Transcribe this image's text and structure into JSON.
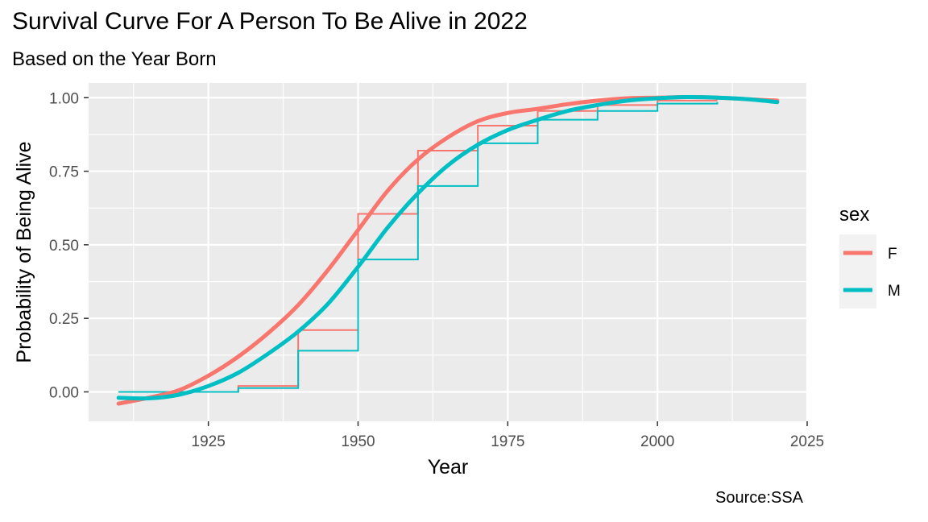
{
  "title": "Survival Curve For A Person To Be Alive in 2022",
  "subtitle": "Based on the Year Born",
  "caption": "Source:SSA",
  "colors": {
    "F": "#F8766D",
    "M": "#00BFC4",
    "panel": "#EBEBEB",
    "grid": "#FFFFFF"
  },
  "chart_data": {
    "type": "line",
    "xlabel": "Year",
    "ylabel": "Probability of Being Alive",
    "xlim": [
      1905,
      2025
    ],
    "ylim": [
      -0.1,
      1.05
    ],
    "x_ticks": [
      1925,
      1950,
      1975,
      2000,
      2025
    ],
    "x_tick_labels": [
      "1925",
      "1950",
      "1975",
      "2000",
      "2025"
    ],
    "y_ticks": [
      0,
      0.25,
      0.5,
      0.75,
      1
    ],
    "y_tick_labels": [
      "0.00",
      "0.25",
      "0.50",
      "0.75",
      "1.00"
    ],
    "grid": true,
    "legend": {
      "title": "sex",
      "position": "right",
      "entries": [
        "F",
        "M"
      ]
    },
    "step_series": [
      {
        "name": "F",
        "points": [
          [
            1910,
            0.0
          ],
          [
            1920,
            0.0
          ],
          [
            1930,
            0.02
          ],
          [
            1940,
            0.21
          ],
          [
            1950,
            0.605
          ],
          [
            1960,
            0.82
          ],
          [
            1970,
            0.905
          ],
          [
            1980,
            0.955
          ],
          [
            1990,
            0.975
          ],
          [
            2000,
            0.99
          ],
          [
            2010,
            0.99
          ]
        ]
      },
      {
        "name": "M",
        "points": [
          [
            1910,
            0.0
          ],
          [
            1920,
            0.0
          ],
          [
            1930,
            0.013
          ],
          [
            1940,
            0.14
          ],
          [
            1950,
            0.45
          ],
          [
            1960,
            0.7
          ],
          [
            1970,
            0.845
          ],
          [
            1980,
            0.925
          ],
          [
            1990,
            0.955
          ],
          [
            2000,
            0.98
          ],
          [
            2010,
            0.985
          ]
        ]
      }
    ],
    "smooth_series": [
      {
        "name": "F",
        "points": [
          [
            1910,
            -0.04
          ],
          [
            1915,
            -0.02
          ],
          [
            1920,
            0.005
          ],
          [
            1925,
            0.055
          ],
          [
            1930,
            0.12
          ],
          [
            1935,
            0.2
          ],
          [
            1940,
            0.295
          ],
          [
            1945,
            0.415
          ],
          [
            1950,
            0.55
          ],
          [
            1955,
            0.685
          ],
          [
            1960,
            0.79
          ],
          [
            1965,
            0.865
          ],
          [
            1970,
            0.92
          ],
          [
            1975,
            0.948
          ],
          [
            1980,
            0.962
          ],
          [
            1985,
            0.978
          ],
          [
            1990,
            0.99
          ],
          [
            1995,
            0.998
          ],
          [
            2000,
            1.0
          ],
          [
            2005,
            1.002
          ],
          [
            2010,
            1.0
          ],
          [
            2015,
            0.995
          ],
          [
            2020,
            0.99
          ]
        ]
      },
      {
        "name": "M",
        "points": [
          [
            1910,
            -0.02
          ],
          [
            1915,
            -0.022
          ],
          [
            1920,
            -0.01
          ],
          [
            1925,
            0.02
          ],
          [
            1930,
            0.065
          ],
          [
            1935,
            0.13
          ],
          [
            1940,
            0.205
          ],
          [
            1945,
            0.3
          ],
          [
            1950,
            0.425
          ],
          [
            1955,
            0.56
          ],
          [
            1960,
            0.675
          ],
          [
            1965,
            0.77
          ],
          [
            1970,
            0.84
          ],
          [
            1975,
            0.89
          ],
          [
            1980,
            0.925
          ],
          [
            1985,
            0.955
          ],
          [
            1990,
            0.975
          ],
          [
            1995,
            0.99
          ],
          [
            2000,
            0.998
          ],
          [
            2005,
            1.002
          ],
          [
            2010,
            1.0
          ],
          [
            2015,
            0.995
          ],
          [
            2020,
            0.985
          ]
        ]
      }
    ]
  }
}
